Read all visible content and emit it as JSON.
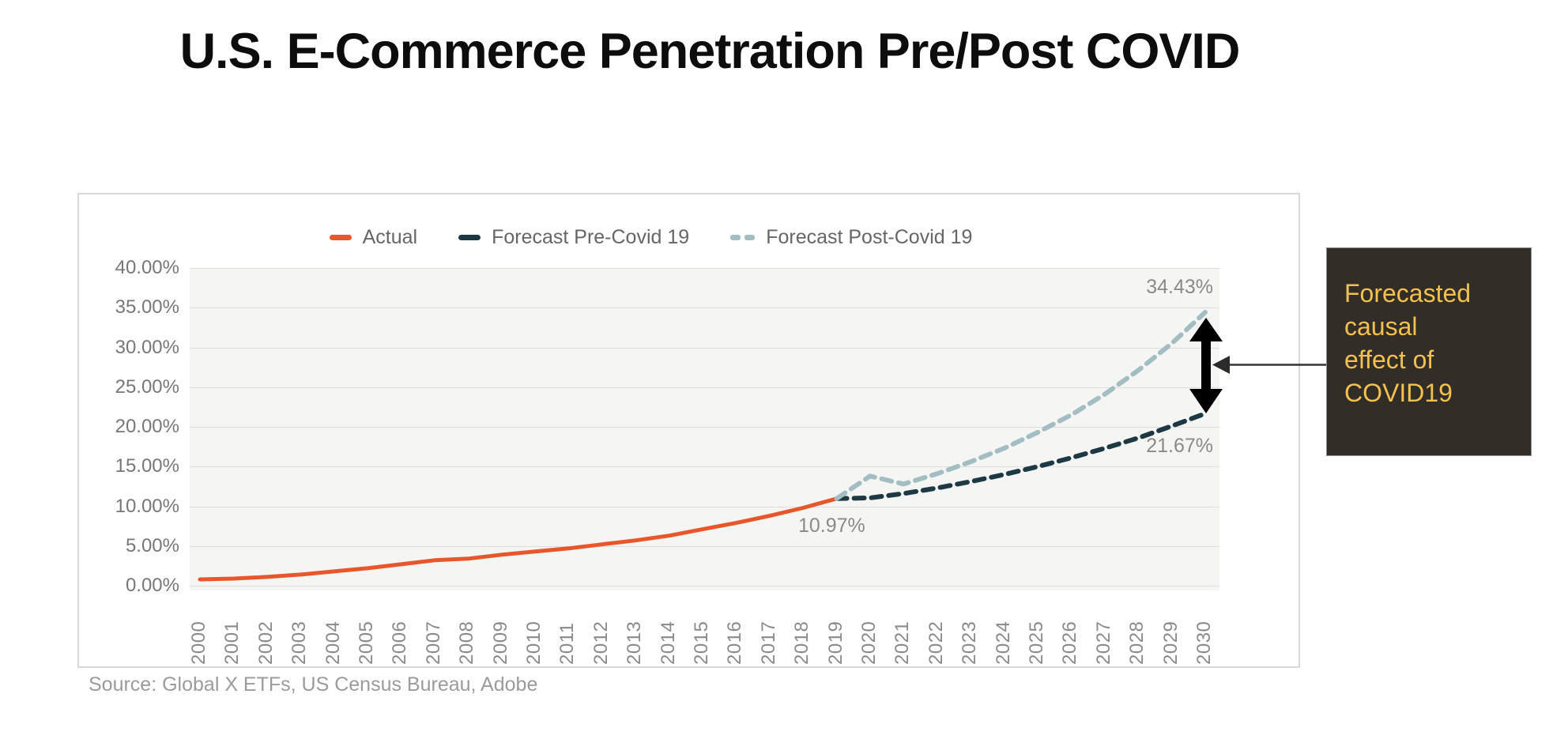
{
  "title": "U.S. E-Commerce Penetration Pre/Post COVID",
  "source": "Source: Global X ETFs, US Census Bureau, Adobe",
  "callout": {
    "lines": [
      "Forecasted",
      "causal",
      "effect of",
      "COVID19"
    ],
    "bg_color": "#332d28",
    "text_color": "#f2c14e"
  },
  "colors": {
    "actual": "#e7572b",
    "forecast_pre": "#1c3944",
    "forecast_post": "#a3bec3",
    "plot_bg": "#f5f5f3",
    "gridline": "#dededc",
    "arrow": "#000000"
  },
  "chart_data": {
    "type": "line",
    "title": "U.S. E-Commerce Penetration Pre/Post COVID",
    "xlabel": "",
    "ylabel": "",
    "x": [
      2000,
      2001,
      2002,
      2003,
      2004,
      2005,
      2006,
      2007,
      2008,
      2009,
      2010,
      2011,
      2012,
      2013,
      2014,
      2015,
      2016,
      2017,
      2018,
      2019,
      2020,
      2021,
      2022,
      2023,
      2024,
      2025,
      2026,
      2027,
      2028,
      2029,
      2030
    ],
    "ylim": [
      0,
      40
    ],
    "ytick_step": 5,
    "yticks": [
      "40.00%",
      "35.00%",
      "30.00%",
      "25.00%",
      "20.00%",
      "15.00%",
      "10.00%",
      "5.00%",
      "0.00%"
    ],
    "grid": true,
    "legend_position": "top-center",
    "legend": [
      {
        "label": "Actual",
        "color": "#e7572b",
        "swatch": "bar"
      },
      {
        "label": "Forecast Pre-Covid 19",
        "color": "#1c3944",
        "swatch": "bar"
      },
      {
        "label": "Forecast Post-Covid 19",
        "color": "#a3bec3",
        "swatch": "double-dash"
      }
    ],
    "series": [
      {
        "name": "Actual",
        "color": "#e7572b",
        "dashed": false,
        "stroke_width": 5,
        "start_year": 2000,
        "values": [
          0.8,
          0.9,
          1.1,
          1.4,
          1.8,
          2.2,
          2.7,
          3.2,
          3.4,
          3.9,
          4.3,
          4.7,
          5.2,
          5.7,
          6.3,
          7.1,
          7.9,
          8.8,
          9.8,
          10.97
        ]
      },
      {
        "name": "Forecast Pre-Covid 19",
        "color": "#1c3944",
        "dashed": true,
        "stroke_width": 6,
        "start_year": 2019,
        "values": [
          10.97,
          11.05,
          11.6,
          12.3,
          13.1,
          14.0,
          15.0,
          16.1,
          17.3,
          18.6,
          20.1,
          21.67
        ]
      },
      {
        "name": "Forecast Post-Covid 19",
        "color": "#a3bec3",
        "dashed": true,
        "stroke_width": 6,
        "start_year": 2019,
        "values": [
          10.97,
          13.8,
          12.8,
          14.1,
          15.6,
          17.3,
          19.3,
          21.5,
          24.1,
          27.1,
          30.5,
          34.43
        ]
      }
    ],
    "point_labels": [
      {
        "text": "10.97%",
        "series": "Actual",
        "year": 2019
      },
      {
        "text": "34.43%",
        "series": "Forecast Post-Covid 19",
        "year": 2030
      },
      {
        "text": "21.67%",
        "series": "Forecast Pre-Covid 19",
        "year": 2030
      }
    ]
  }
}
